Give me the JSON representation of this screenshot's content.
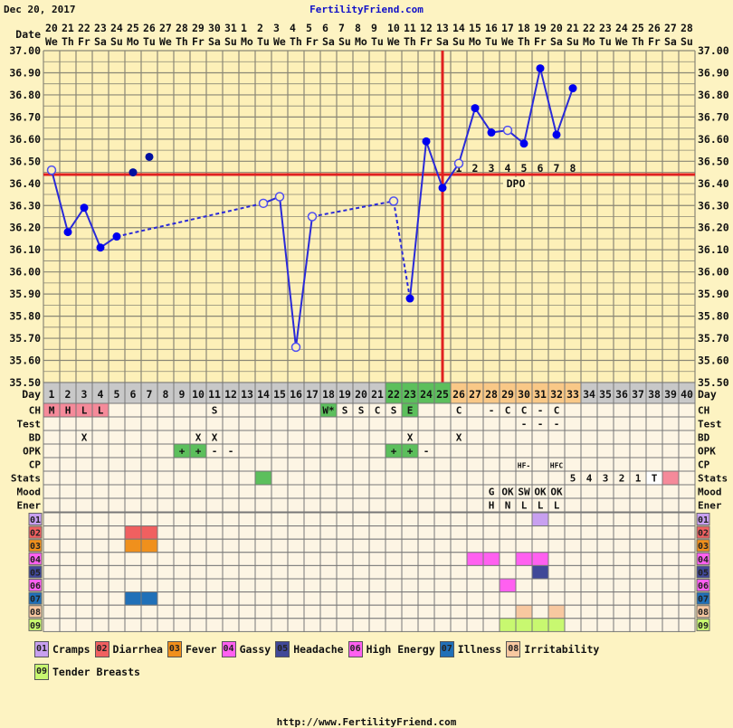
{
  "header": {
    "date": "Dec 20, 2017",
    "site": "FertilityFriend.com",
    "date_label": "Date",
    "day_label": "Day"
  },
  "dates": [
    "20",
    "21",
    "22",
    "23",
    "24",
    "25",
    "26",
    "27",
    "28",
    "29",
    "30",
    "31",
    "1",
    "2",
    "3",
    "4",
    "5",
    "6",
    "7",
    "8",
    "9",
    "10",
    "11",
    "12",
    "13",
    "14",
    "15",
    "16",
    "17",
    "18",
    "19",
    "20",
    "21",
    "22",
    "23",
    "24",
    "25",
    "26",
    "27",
    "28"
  ],
  "weekdays": [
    "We",
    "Th",
    "Fr",
    "Sa",
    "Su",
    "Mo",
    "Tu",
    "We",
    "Th",
    "Fr",
    "Sa",
    "Su",
    "Mo",
    "Tu",
    "We",
    "Th",
    "Fr",
    "Sa",
    "Su",
    "Mo",
    "Tu",
    "We",
    "Th",
    "Fr",
    "Sa",
    "Su",
    "Mo",
    "Tu",
    "We",
    "Th",
    "Fr",
    "Sa",
    "Su",
    "Mo",
    "Tu",
    "We",
    "Th",
    "Fr",
    "Sa",
    "Su"
  ],
  "day_colors": {
    "grey": "#c8c8c8",
    "fertile": "#5cbf5c",
    "luteal": "#f9c887"
  },
  "day_phase": {
    "fertile": [
      22,
      23,
      24,
      25
    ],
    "luteal": [
      26,
      27,
      28,
      29,
      30,
      31,
      32,
      33
    ]
  },
  "chart_data": {
    "type": "line",
    "ylim": [
      35.5,
      37.0
    ],
    "y_ticks": [
      "37.00",
      "36.90",
      "36.80",
      "36.70",
      "36.60",
      "36.50",
      "36.40",
      "36.30",
      "36.20",
      "36.10",
      "36.00",
      "35.90",
      "35.80",
      "35.70",
      "35.60",
      "35.50"
    ],
    "x": "cycle day",
    "grid": true,
    "line_color": "#2a2ad8",
    "coverline": 36.44,
    "ovulation_day": 25,
    "line_marker_color": "#e02020",
    "points": [
      {
        "day": 1,
        "temp": 36.46,
        "open": true
      },
      {
        "day": 2,
        "temp": 36.18
      },
      {
        "day": 3,
        "temp": 36.29
      },
      {
        "day": 4,
        "temp": 36.11
      },
      {
        "day": 5,
        "temp": 36.16
      },
      {
        "day": 6,
        "temp": 36.45,
        "discarded": true
      },
      {
        "day": 7,
        "temp": 36.52,
        "discarded": true
      },
      {
        "day": 14,
        "temp": 36.31,
        "open": true
      },
      {
        "day": 15,
        "temp": 36.34,
        "open": true
      },
      {
        "day": 16,
        "temp": 35.66,
        "open": true
      },
      {
        "day": 17,
        "temp": 36.25,
        "open": true
      },
      {
        "day": 22,
        "temp": 36.32,
        "open": true
      },
      {
        "day": 23,
        "temp": 35.88
      },
      {
        "day": 24,
        "temp": 36.59
      },
      {
        "day": 25,
        "temp": 36.38
      },
      {
        "day": 26,
        "temp": 36.49,
        "open": true
      },
      {
        "day": 27,
        "temp": 36.74
      },
      {
        "day": 28,
        "temp": 36.63
      },
      {
        "day": 29,
        "temp": 36.64,
        "open": true
      },
      {
        "day": 30,
        "temp": 36.58
      },
      {
        "day": 31,
        "temp": 36.92
      },
      {
        "day": 32,
        "temp": 36.62
      },
      {
        "day": 33,
        "temp": 36.83
      }
    ],
    "dashed_segments": [
      [
        5,
        14
      ],
      [
        17,
        22
      ],
      [
        22,
        23
      ]
    ],
    "dpo_numbers": [
      "1",
      "2",
      "3",
      "4",
      "5",
      "6",
      "7",
      "8"
    ],
    "dpo_label": "DPO"
  },
  "rows": [
    {
      "label": "CH",
      "cells": {
        "1": "M",
        "2": "H",
        "3": "L",
        "4": "L",
        "11": "S",
        "18": "W*",
        "19": "S",
        "20": "S",
        "21": "C",
        "22": "S",
        "23": "E",
        "26": "C",
        "28": "-",
        "29": "C",
        "30": "C",
        "31": "-",
        "32": "C"
      },
      "fills": {
        "1": "#f58a9a",
        "2": "#f58a9a",
        "3": "#f58a9a",
        "4": "#f58a9a",
        "18": "#5cbf5c",
        "23": "#5cbf5c"
      }
    },
    {
      "label": "Test",
      "cells": {
        "30": "-",
        "31": "-",
        "32": "-"
      },
      "fills": {}
    },
    {
      "label": "BD",
      "cells": {
        "3": "X",
        "10": "X",
        "11": "X",
        "23": "X",
        "26": "X"
      },
      "fills": {}
    },
    {
      "label": "OPK",
      "cells": {
        "9": "+",
        "10": "+",
        "11": "-",
        "12": "-",
        "22": "+",
        "23": "+",
        "24": "-"
      },
      "fills": {
        "9": "#5cbf5c",
        "10": "#5cbf5c",
        "22": "#5cbf5c",
        "23": "#5cbf5c"
      }
    },
    {
      "label": "CP",
      "cells": {
        "30": "HF-",
        "32": "HFC"
      },
      "fills": {}
    },
    {
      "label": "Stats",
      "cells": {
        "33": "5",
        "34": "4",
        "35": "3",
        "36": "2",
        "37": "1",
        "38": "T"
      },
      "fills": {
        "14": "#5cbf5c",
        "38": "#ffffff",
        "39": "#f58a9a"
      }
    },
    {
      "label": "Mood",
      "cells": {
        "28": "G",
        "29": "OK",
        "30": "SW",
        "31": "OK",
        "32": "OK"
      },
      "fills": {}
    },
    {
      "label": "Ener",
      "cells": {
        "28": "H",
        "29": "N",
        "30": "L",
        "31": "L",
        "32": "L"
      },
      "fills": {}
    }
  ],
  "symptoms": [
    {
      "code": "01",
      "name": "Cramps",
      "color": "#c8a0f0",
      "days": [
        31
      ]
    },
    {
      "code": "02",
      "name": "Diarrhea",
      "color": "#f06060",
      "days": [
        6,
        7
      ]
    },
    {
      "code": "03",
      "name": "Fever",
      "color": "#f0901c",
      "days": [
        6,
        7
      ]
    },
    {
      "code": "04",
      "name": "Gassy",
      "color": "#ff60f0",
      "days": [
        27,
        28,
        30,
        31
      ]
    },
    {
      "code": "05",
      "name": "Headache",
      "color": "#404898",
      "days": [
        31
      ]
    },
    {
      "code": "06",
      "name": "High Energy",
      "color": "#ff60f0",
      "days": [
        29
      ]
    },
    {
      "code": "07",
      "name": "Illness",
      "color": "#2070b8",
      "days": [
        6,
        7
      ]
    },
    {
      "code": "08",
      "name": "Irritability",
      "color": "#f8c8a0",
      "days": [
        30,
        32
      ]
    },
    {
      "code": "09",
      "name": "Tender Breasts",
      "color": "#c8f870",
      "days": [
        29,
        30,
        31,
        32
      ]
    }
  ],
  "footer": "http://www.FertilityFriend.com"
}
